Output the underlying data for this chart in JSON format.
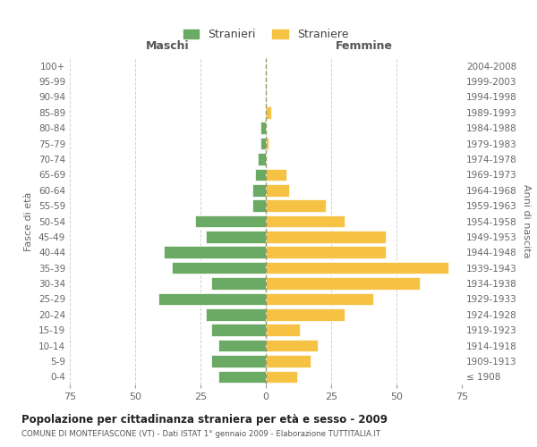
{
  "age_groups": [
    "100+",
    "95-99",
    "90-94",
    "85-89",
    "80-84",
    "75-79",
    "70-74",
    "65-69",
    "60-64",
    "55-59",
    "50-54",
    "45-49",
    "40-44",
    "35-39",
    "30-34",
    "25-29",
    "20-24",
    "15-19",
    "10-14",
    "5-9",
    "0-4"
  ],
  "birth_years": [
    "≤ 1908",
    "1909-1913",
    "1914-1918",
    "1919-1923",
    "1924-1928",
    "1929-1933",
    "1934-1938",
    "1939-1943",
    "1944-1948",
    "1949-1953",
    "1954-1958",
    "1959-1963",
    "1964-1968",
    "1969-1973",
    "1974-1978",
    "1979-1983",
    "1984-1988",
    "1989-1993",
    "1994-1998",
    "1999-2003",
    "2004-2008"
  ],
  "males": [
    0,
    0,
    0,
    0,
    2,
    2,
    3,
    4,
    5,
    5,
    27,
    23,
    39,
    36,
    21,
    41,
    23,
    21,
    18,
    21,
    18
  ],
  "females": [
    0,
    0,
    0,
    2,
    0,
    1,
    0,
    8,
    9,
    23,
    30,
    46,
    46,
    70,
    59,
    41,
    30,
    13,
    20,
    17,
    12
  ],
  "male_color": "#6aaa64",
  "female_color": "#f5c244",
  "bar_edge_color": "white",
  "title": "Popolazione per cittadinanza straniera per età e sesso - 2009",
  "subtitle": "COMUNE DI MONTEFIASCONE (VT) - Dati ISTAT 1° gennaio 2009 - Elaborazione TUTTITALIA.IT",
  "xlabel_left": "Maschi",
  "xlabel_right": "Femmine",
  "ylabel_left": "Fasce di età",
  "ylabel_right": "Anni di nascita",
  "legend_males": "Stranieri",
  "legend_females": "Straniere",
  "xlim": 75,
  "background_color": "#ffffff",
  "grid_color": "#cccccc"
}
